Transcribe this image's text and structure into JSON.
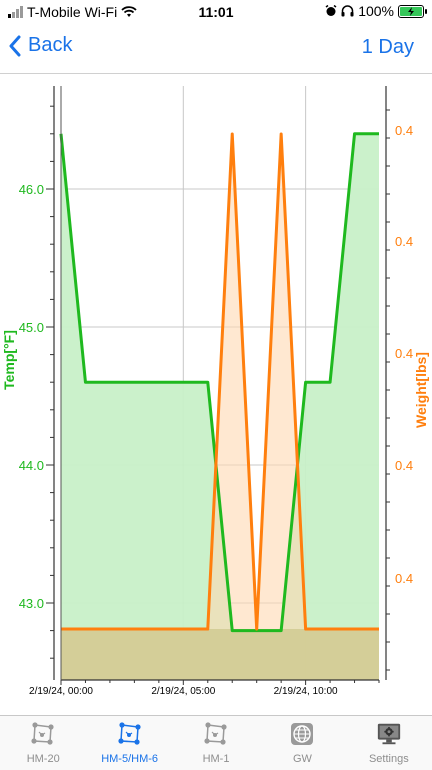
{
  "status_bar": {
    "carrier": "T-Mobile Wi-Fi",
    "time": "11:01",
    "battery": "100%"
  },
  "nav": {
    "back_label": "Back",
    "range_label": "1 Day"
  },
  "chart_data": {
    "type": "line",
    "x_ticks": [
      "2/19/24, 00:00",
      "2/19/24, 05:00",
      "2/19/24, 10:00"
    ],
    "left_axis": {
      "label": "Temp[°F]",
      "ticks": [
        "46.0",
        "45.0",
        "44.0",
        "43.0"
      ],
      "color": "#1fb91f"
    },
    "right_axis": {
      "label": "Weight[lbs]",
      "ticks": [
        "0.4",
        "0.4",
        "0.4",
        "0.4",
        "0.4"
      ],
      "color": "#ff7f0e"
    },
    "series": [
      {
        "axis": "left",
        "color": "#1fb91f",
        "fill": "#c8f0c8",
        "x": [
          "00:00",
          "01:00",
          "06:00",
          "07:00",
          "09:00",
          "10:00",
          "11:00",
          "12:00",
          "13:00"
        ],
        "y": [
          46.4,
          44.6,
          44.6,
          42.8,
          42.8,
          44.6,
          44.6,
          46.4,
          46.4
        ]
      },
      {
        "axis": "right",
        "color": "#ff7f0e",
        "fill": "#ffd9b3",
        "x": [
          "00:00",
          "06:00",
          "07:00",
          "08:00",
          "09:00",
          "10:00",
          "13:00"
        ],
        "y_level": [
          "low",
          "low",
          "high",
          "low",
          "high",
          "low",
          "low"
        ]
      }
    ],
    "grid": true
  },
  "tabs": [
    {
      "label": "HM-20",
      "icon": "network-icon",
      "active": false
    },
    {
      "label": "HM-5/HM-6",
      "icon": "network-icon",
      "active": true
    },
    {
      "label": "HM-1",
      "icon": "network-icon",
      "active": false
    },
    {
      "label": "GW",
      "icon": "globe-icon",
      "active": false
    },
    {
      "label": "Settings",
      "icon": "settings-monitor-icon",
      "active": false
    }
  ]
}
